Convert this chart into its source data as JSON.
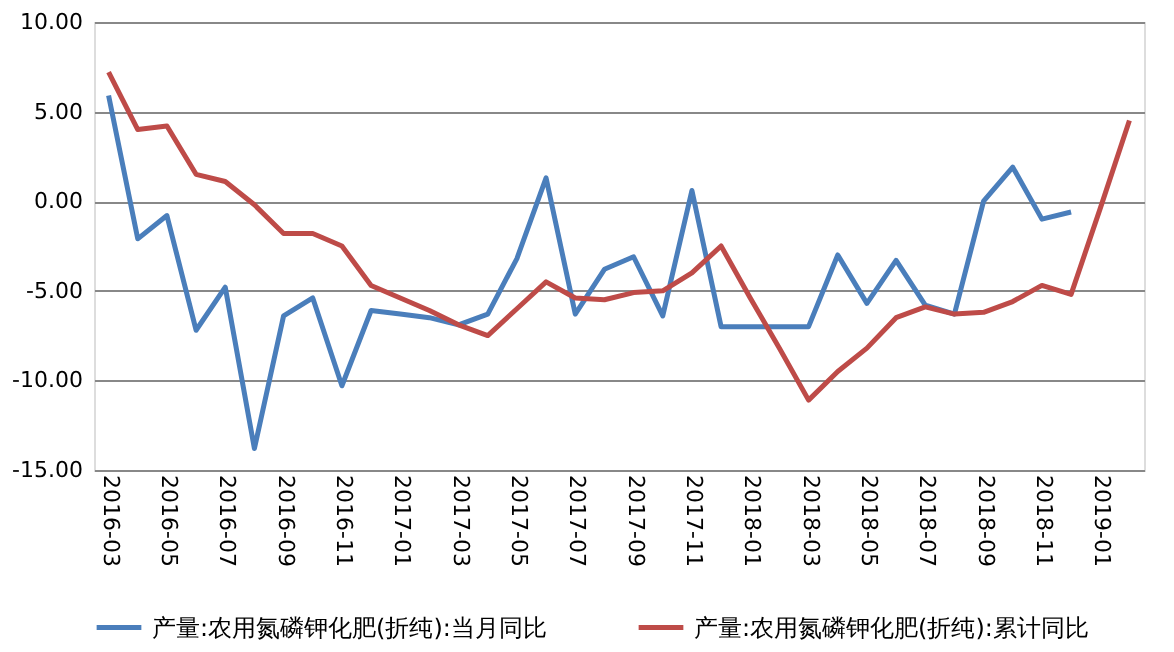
{
  "chart_data": {
    "type": "line",
    "categories": [
      "2016-03",
      null,
      "2016-05",
      null,
      "2016-07",
      null,
      "2016-09",
      null,
      "2016-11",
      null,
      "2017-01",
      null,
      "2017-03",
      null,
      "2017-05",
      null,
      "2017-07",
      null,
      "2017-09",
      null,
      "2017-11",
      null,
      "2018-01",
      null,
      "2018-03",
      null,
      "2018-05",
      null,
      "2018-07",
      null,
      "2018-09",
      null,
      "2018-11",
      null,
      "2019-01",
      null
    ],
    "series": [
      {
        "name": "产量:农用氮磷钾化肥(折纯):当月同比",
        "color": "#4a7ebb",
        "values": [
          5.9,
          -2.1,
          -0.8,
          -7.2,
          -4.8,
          -13.8,
          -6.4,
          -5.4,
          -10.3,
          -6.1,
          -6.3,
          -6.5,
          -6.9,
          -6.3,
          -3.2,
          1.3,
          -6.3,
          -3.8,
          -3.1,
          -6.4,
          0.6,
          -7.0,
          -7.0,
          -7.0,
          -7.0,
          -3.0,
          -5.7,
          -3.3,
          -5.8,
          -6.3,
          0.0,
          1.9,
          -1.0,
          -0.6,
          null,
          null
        ]
      },
      {
        "name": "产量:农用氮磷钾化肥(折纯):累计同比",
        "color": "#be4b48",
        "values": [
          7.2,
          4.0,
          4.2,
          1.5,
          1.1,
          -0.2,
          -1.8,
          -1.8,
          -2.5,
          -4.7,
          -5.4,
          -6.1,
          -6.9,
          -7.5,
          -6.0,
          -4.5,
          -5.4,
          -5.5,
          -5.1,
          -5.0,
          -4.0,
          -2.5,
          -5.4,
          -8.2,
          -11.1,
          -9.5,
          -8.2,
          -6.5,
          -5.9,
          -6.3,
          -6.2,
          -5.6,
          -4.7,
          -5.2,
          -0.4,
          4.5
        ]
      }
    ],
    "ylim": [
      -15,
      10
    ],
    "yticks": [
      {
        "value": -15,
        "label": "-15.00"
      },
      {
        "value": -10,
        "label": "-10.00"
      },
      {
        "value": -5,
        "label": "-5.00"
      },
      {
        "value": 0,
        "label": "0.00"
      },
      {
        "value": 5,
        "label": "5.00"
      },
      {
        "value": 10,
        "label": "10.00"
      }
    ],
    "grid": "y",
    "legend": "bottom",
    "marker": "none",
    "line_style": "solid"
  }
}
